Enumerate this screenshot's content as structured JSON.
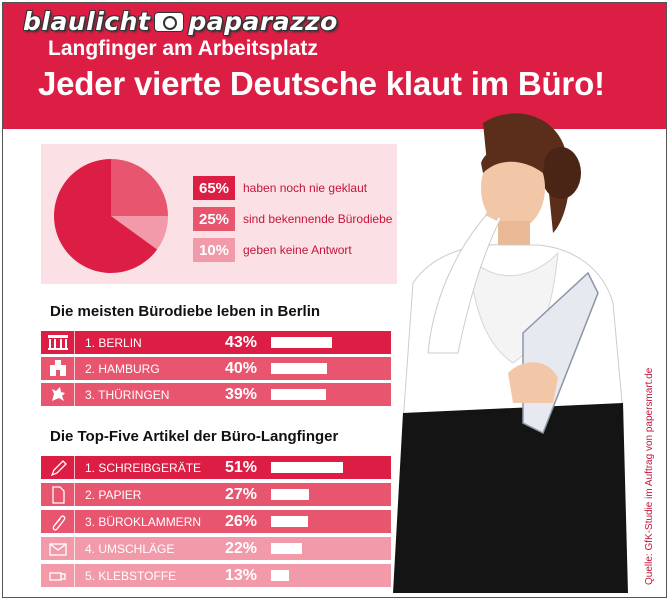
{
  "header": {
    "watermark_left": "blaulicht",
    "watermark_right": "paparazzo",
    "subtitle": "Langfinger am Arbeitsplatz",
    "title": "Jeder vierte Deutsche klaut im Büro!"
  },
  "colors": {
    "dark": "#dc1e44",
    "mid": "#e8556f",
    "light": "#f29aaa",
    "panel": "#fbe1e6"
  },
  "chart_data": [
    {
      "type": "pie",
      "title": "",
      "slices": [
        {
          "value": 65,
          "label": "65%",
          "text": "haben noch nie geklaut",
          "color": "#dc1e44"
        },
        {
          "value": 25,
          "label": "25%",
          "text": "sind bekennende Bürodiebe",
          "color": "#e8556f"
        },
        {
          "value": 10,
          "label": "10%",
          "text": "geben keine Antwort",
          "color": "#f29aaa"
        }
      ]
    },
    {
      "type": "bar",
      "title": "Die meisten Bürodiebe leben in Berlin",
      "categories": [
        "1. BERLIN",
        "2. HAMBURG",
        "3. THÜRINGEN"
      ],
      "values": [
        43,
        40,
        39
      ],
      "labels": [
        "43%",
        "40%",
        "39%"
      ],
      "icons": [
        "brandenburg-gate-icon",
        "hamburg-castle-icon",
        "thuringia-lion-icon"
      ],
      "xlim": [
        0,
        51
      ]
    },
    {
      "type": "bar",
      "title": "Die Top-Five Artikel der Büro-Langfinger",
      "categories": [
        "1. SCHREIBGERÄTE",
        "2. PAPIER",
        "3. BÜROKLAMMERN",
        "4. UMSCHLÄGE",
        "5. KLEBSTOFFE"
      ],
      "values": [
        51,
        27,
        26,
        22,
        13
      ],
      "labels": [
        "51%",
        "27%",
        "26%",
        "22%",
        "13%"
      ],
      "icons": [
        "pen-icon",
        "paper-icon",
        "paperclip-icon",
        "envelope-icon",
        "glue-stick-icon"
      ],
      "xlim": [
        0,
        51
      ]
    }
  ],
  "source": "Quelle: GfK-Studie im Auftrag von papersmart.de"
}
